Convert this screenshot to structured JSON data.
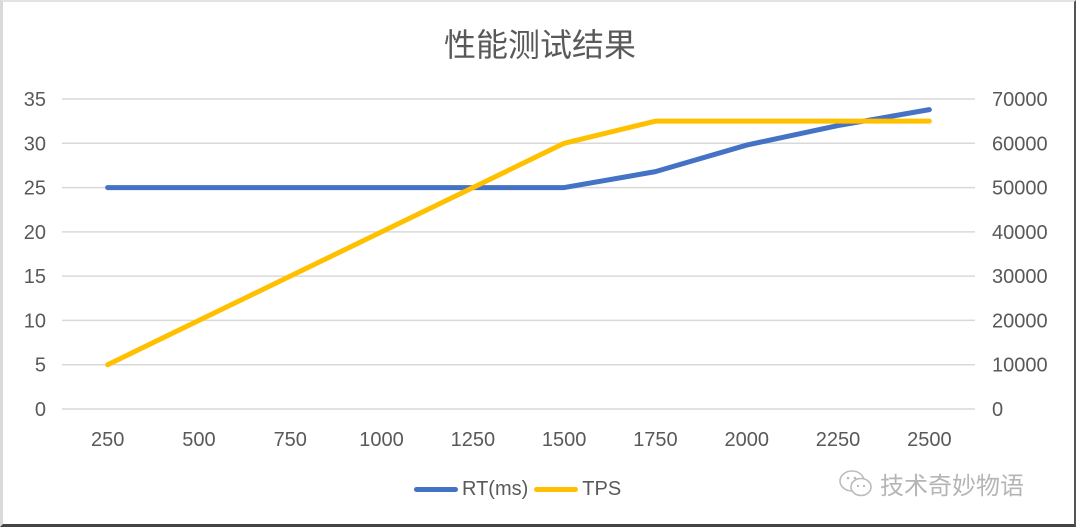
{
  "chart_data": {
    "type": "line",
    "title": "性能测试结果",
    "xlabel": "",
    "ylabel": "",
    "y2label": "",
    "categories": [
      "250",
      "500",
      "750",
      "1000",
      "1250",
      "1500",
      "1750",
      "2000",
      "2250",
      "2500"
    ],
    "series": [
      {
        "name": "RT(ms)",
        "axis": "left",
        "color": "#4472C4",
        "values": [
          25,
          25,
          25,
          25,
          25,
          25,
          26.8,
          29.8,
          32,
          33.8
        ]
      },
      {
        "name": "TPS",
        "axis": "right",
        "color": "#FFC000",
        "values": [
          10000,
          20000,
          30000,
          40000,
          50000,
          60000,
          65000,
          65000,
          65000,
          65000
        ]
      }
    ],
    "ylim": [
      0,
      35
    ],
    "y2lim": [
      0,
      70000
    ],
    "yticks": [
      "0",
      "5",
      "10",
      "15",
      "20",
      "25",
      "30",
      "35"
    ],
    "y2ticks": [
      "0",
      "10000",
      "20000",
      "30000",
      "40000",
      "50000",
      "60000",
      "70000"
    ],
    "grid": true,
    "legend_position": "bottom"
  },
  "watermark": {
    "text": "技术奇妙物语",
    "icon": "wechat-icon"
  }
}
